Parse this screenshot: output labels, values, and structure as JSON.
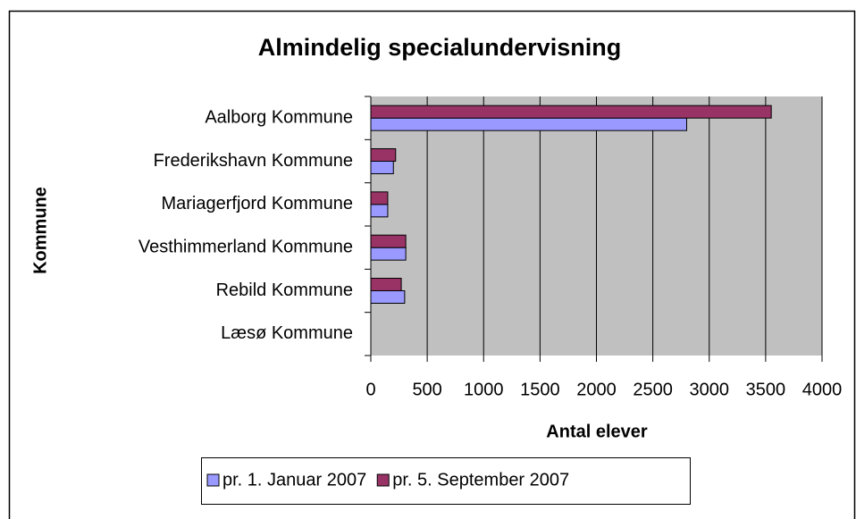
{
  "chart_data": {
    "type": "hbar",
    "title": "Almindelig specialundervisning",
    "x_label": "Antal elever",
    "y_label": "Kommune",
    "categories": [
      "Aalborg Kommune",
      "Frederikshavn Kommune",
      "Mariagerfjord Kommune",
      "Vesthimmerland Kommune",
      "Rebild Kommune",
      "Læsø Kommune"
    ],
    "series": [
      {
        "name": "pr. 1. Januar 2007",
        "color": "#9999ff",
        "values": [
          2800,
          200,
          150,
          310,
          300,
          0
        ]
      },
      {
        "name": "pr. 5. September 2007",
        "color": "#993366",
        "values": [
          3550,
          220,
          150,
          310,
          270,
          0
        ]
      }
    ],
    "xlim": [
      0,
      4000
    ],
    "xticks": [
      0,
      500,
      1000,
      1500,
      2000,
      2500,
      3000,
      3500,
      4000
    ],
    "grid": true,
    "legend": "bottom"
  }
}
